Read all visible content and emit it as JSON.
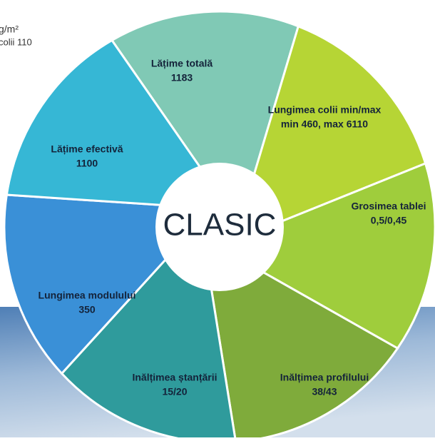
{
  "fragments": [
    "g/m²",
    "colii  110"
  ],
  "center_label": "CLASIC",
  "segments": [
    {
      "title": "Lățime totală",
      "value": "1183"
    },
    {
      "title": "Lungimea colii min/max",
      "value": "min 460, max 6110"
    },
    {
      "title": "Grosimea tablei",
      "value": "0,5/0,45"
    },
    {
      "title": "Inălțimea profilului",
      "value": "38/43"
    },
    {
      "title": "Inălțimea ștanțării",
      "value": "15/20"
    },
    {
      "title": "Lungimea modulului",
      "value": "350"
    },
    {
      "title": "Lățime efectivă",
      "value": "1100"
    }
  ]
}
